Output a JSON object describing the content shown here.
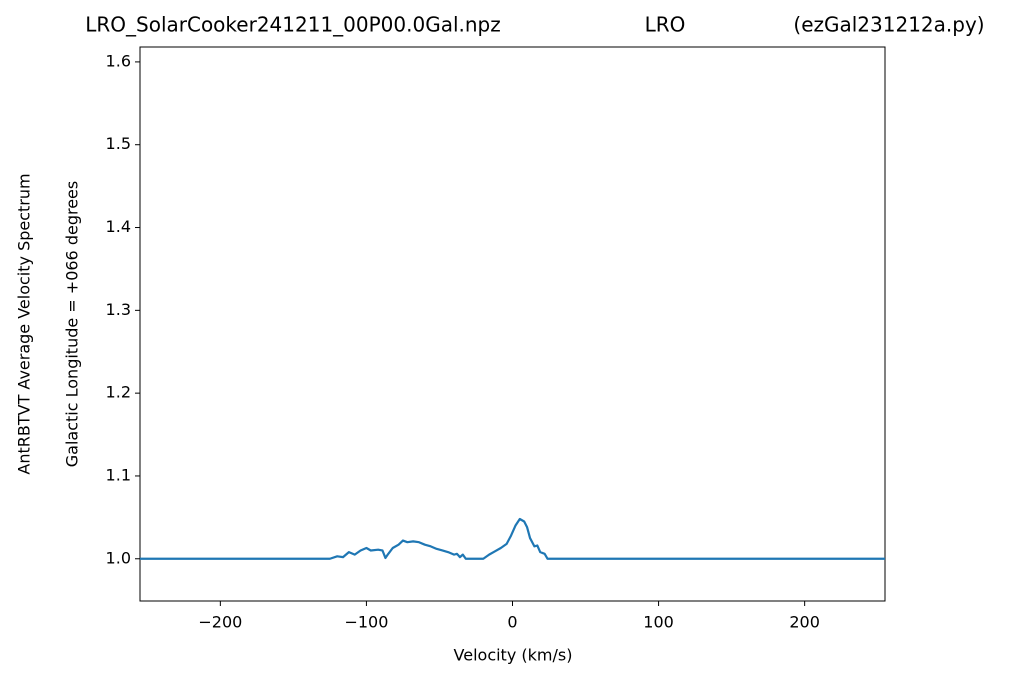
{
  "chart_data": {
    "type": "line",
    "title_parts": [
      "LRO_SolarCooker241211_00P00.0Gal.npz",
      "LRO",
      "(ezGal231212a.py)"
    ],
    "y_label_lines": [
      "AntRBTVT Average Velocity Spectrum",
      "Galactic Longitude = +066 degrees"
    ],
    "x_label": "Velocity (km/s)",
    "x": [
      -255,
      -125,
      -120,
      -116,
      -112,
      -108,
      -104,
      -100,
      -97,
      -92,
      -89,
      -87,
      -85,
      -82,
      -78,
      -75,
      -72,
      -68,
      -64,
      -60,
      -56,
      -52,
      -48,
      -44,
      -40,
      -38,
      -36,
      -34,
      -32,
      -30,
      -20,
      -16,
      -12,
      -8,
      -4,
      -1,
      2,
      5,
      8,
      10,
      12,
      15,
      17,
      19,
      22,
      24,
      25,
      255
    ],
    "series": [
      {
        "color": "#1f77b4",
        "values": [
          1.0,
          1.0,
          1.003,
          1.002,
          1.008,
          1.005,
          1.01,
          1.013,
          1.01,
          1.011,
          1.01,
          1.001,
          1.006,
          1.013,
          1.017,
          1.022,
          1.02,
          1.021,
          1.02,
          1.017,
          1.015,
          1.012,
          1.01,
          1.008,
          1.005,
          1.006,
          1.002,
          1.005,
          1.0,
          1.0,
          1.0,
          1.005,
          1.009,
          1.013,
          1.018,
          1.028,
          1.04,
          1.048,
          1.045,
          1.038,
          1.025,
          1.015,
          1.016,
          1.008,
          1.006,
          1.0,
          1.0,
          1.0
        ]
      }
    ],
    "xlim": [
      -255,
      255
    ],
    "ylim": [
      0.949,
      1.618
    ],
    "xticks": [
      {
        "value": -200,
        "label": "−200"
      },
      {
        "value": -100,
        "label": "−100"
      },
      0,
      100,
      200
    ],
    "yticks": [
      {
        "value": 1,
        "label": "1.0"
      },
      1.1,
      1.2,
      1.3,
      1.4,
      1.5,
      1.6
    ],
    "grid": false
  }
}
